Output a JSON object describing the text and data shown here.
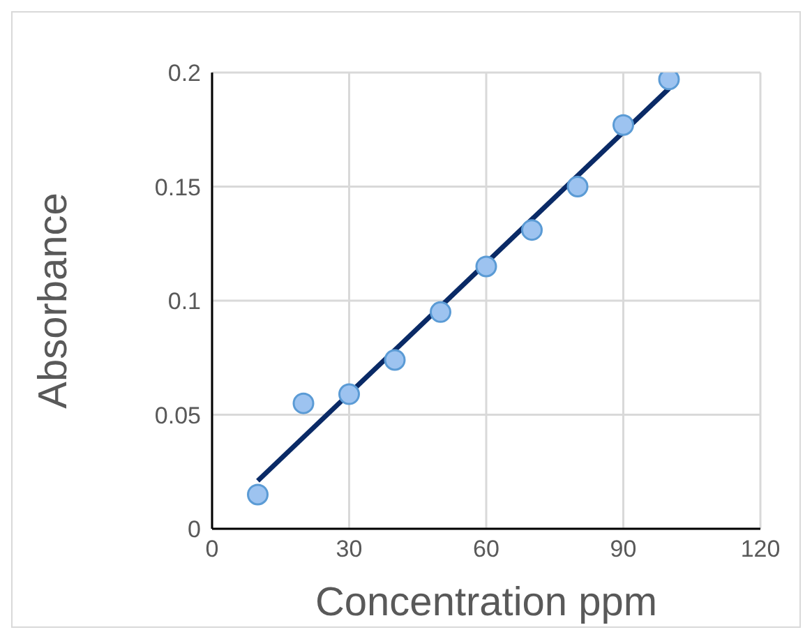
{
  "chart_data": {
    "type": "scatter",
    "xlabel": "Concentration ppm",
    "ylabel": "Absorbance",
    "x": [
      10,
      20,
      30,
      40,
      50,
      60,
      70,
      80,
      90,
      100
    ],
    "series": [
      {
        "color": "#9dc3f0",
        "marker": "circle",
        "values": [
          0.015,
          0.055,
          0.059,
          0.074,
          0.095,
          0.115,
          0.131,
          0.15,
          0.177,
          0.197
        ]
      },
      {
        "type": "line",
        "marker": "none",
        "color": "#0a2a66",
        "x": [
          10,
          100
        ],
        "values": [
          0.021,
          0.193
        ]
      }
    ],
    "xlim": [
      0,
      120
    ],
    "xticks": [
      0,
      30,
      60,
      90,
      120
    ],
    "ylim": [
      0,
      0.2
    ],
    "yticks": [
      0,
      0.05,
      0.1,
      0.15,
      0.2
    ],
    "grid": true
  }
}
